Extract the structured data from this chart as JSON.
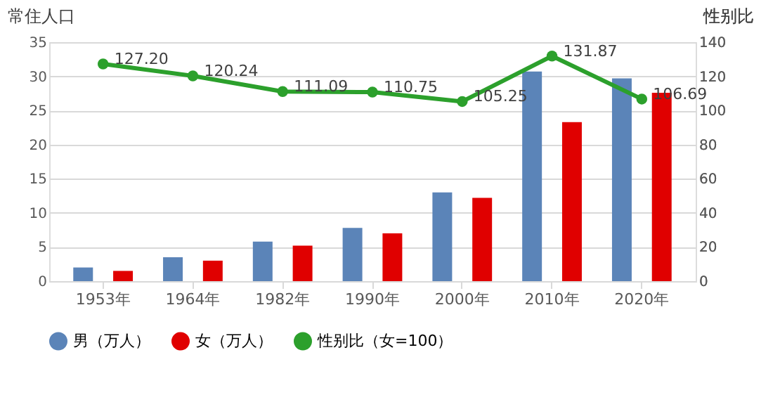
{
  "chart_data": {
    "type": "bar",
    "ylabel": "常住人口",
    "y2label": "性别比",
    "categories": [
      "1953年",
      "1964年",
      "1982年",
      "1990年",
      "2000年",
      "2010年",
      "2020年"
    ],
    "series": [
      {
        "name": "男（万人）",
        "color": "#5b84b8",
        "values": [
          2.0,
          3.5,
          5.8,
          7.8,
          13.0,
          30.7,
          29.7
        ]
      },
      {
        "name": "女（万人）",
        "color": "#e00000",
        "values": [
          1.5,
          3.0,
          5.2,
          7.0,
          12.2,
          23.3,
          27.6
        ]
      },
      {
        "name": "性别比（女=100）",
        "type": "line",
        "axis": "y2",
        "color": "#2ca02c",
        "values": [
          127.2,
          120.24,
          111.09,
          110.75,
          105.25,
          131.87,
          106.69
        ],
        "value_labels": [
          "127.20",
          "120.24",
          "111.09",
          "110.75",
          "105.25",
          "131.87",
          "106.69"
        ],
        "marker": "circle"
      }
    ],
    "ylim": [
      0,
      35
    ],
    "yticks": [
      0,
      5,
      10,
      15,
      20,
      25,
      30,
      35
    ],
    "y2lim": [
      0,
      140
    ],
    "y2ticks": [
      0,
      20,
      40,
      60,
      80,
      100,
      120,
      140
    ],
    "grid": "y",
    "legend": "bottom"
  }
}
